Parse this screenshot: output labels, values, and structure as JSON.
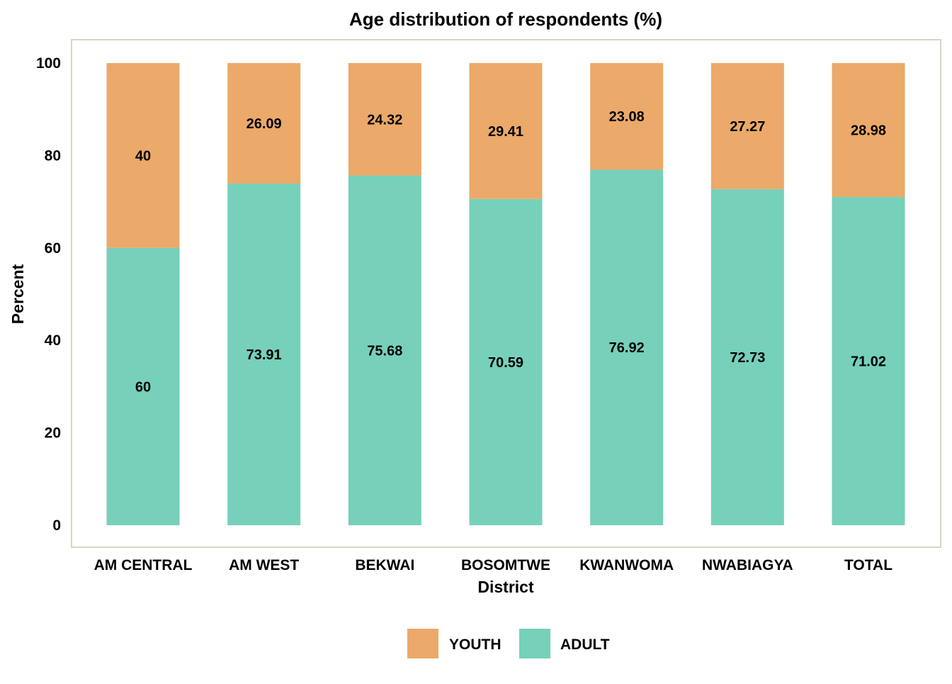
{
  "chart_data": {
    "type": "bar",
    "stacked": true,
    "title": "Age distribution of respondents (%)",
    "xlabel": "District",
    "ylabel": "Percent",
    "ylim": [
      0,
      100
    ],
    "yticks": [
      0,
      20,
      40,
      60,
      80,
      100
    ],
    "grid": false,
    "legend_position": "bottom",
    "categories": [
      "AM CENTRAL",
      "AM WEST",
      "BEKWAI",
      "BOSOMTWE",
      "KWANWOMA",
      "NWABIAGYA",
      "TOTAL"
    ],
    "series": [
      {
        "name": "ADULT",
        "color": "#76d0ba",
        "values": [
          60,
          73.91,
          75.68,
          70.59,
          76.92,
          72.73,
          71.02
        ]
      },
      {
        "name": "YOUTH",
        "color": "#eba96a",
        "values": [
          40,
          26.09,
          24.32,
          29.41,
          23.08,
          27.27,
          28.98
        ]
      }
    ],
    "data_labels": [
      [
        "60",
        "73.91",
        "75.68",
        "70.59",
        "76.92",
        "72.73",
        "71.02"
      ],
      [
        "40",
        "26.09",
        "24.32",
        "29.41",
        "23.08",
        "27.27",
        "28.98"
      ]
    ],
    "legend_order": [
      "YOUTH",
      "ADULT"
    ],
    "frame_color": "#d6d6c2"
  }
}
